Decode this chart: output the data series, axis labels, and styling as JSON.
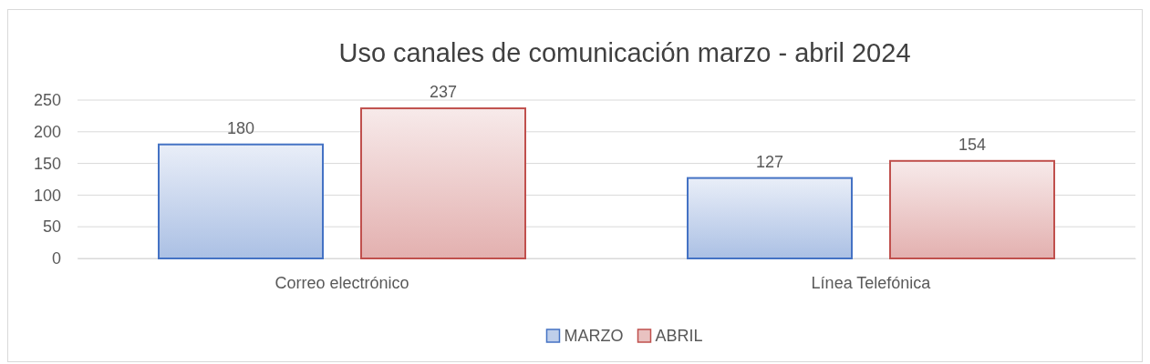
{
  "chart_data": {
    "type": "bar",
    "title": "Uso canales de comunicación marzo - abril 2024",
    "categories": [
      "Correo electrónico",
      "Línea Telefónica"
    ],
    "series": [
      {
        "name": "MARZO",
        "color": "#4472c4",
        "values": [
          180,
          127
        ]
      },
      {
        "name": "ABRIL",
        "color": "#c0504d",
        "values": [
          237,
          154
        ]
      }
    ],
    "ylim": [
      0,
      250
    ],
    "yticks": [
      0,
      50,
      100,
      150,
      200,
      250
    ],
    "grid": "y",
    "legend": "bottom",
    "data_labels": true
  }
}
